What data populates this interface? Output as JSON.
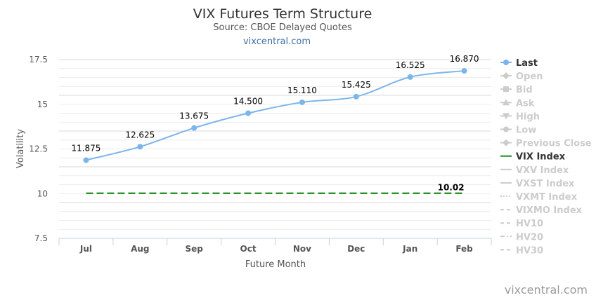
{
  "chart_data": {
    "type": "line",
    "title": "VIX Futures Term Structure",
    "subtitle": "Source: CBOE Delayed Quotes",
    "subtitle_link": "vixcentral.com",
    "xlabel": "Future Month",
    "ylabel": "Volatility",
    "categories": [
      "Jul",
      "Aug",
      "Sep",
      "Oct",
      "Nov",
      "Dec",
      "Jan",
      "Feb"
    ],
    "ylim": [
      7.5,
      17.5
    ],
    "yticks": [
      7.5,
      10,
      12.5,
      15,
      17.5
    ],
    "ytick_labels": [
      "7.5",
      "10",
      "12.5",
      "15",
      "17.5"
    ],
    "grid": true,
    "legend_position": "right",
    "series": [
      {
        "name": "Last",
        "color": "#7cb5ec",
        "values": [
          11.875,
          12.625,
          13.675,
          14.5,
          15.11,
          15.425,
          16.525,
          16.87
        ],
        "labels": [
          "11.875",
          "12.625",
          "13.675",
          "14.500",
          "15.110",
          "15.425",
          "16.525",
          "16.870"
        ]
      },
      {
        "name": "VIX Index",
        "color": "#1a8a1a",
        "dashed": true,
        "values": [
          10.02,
          10.02,
          10.02,
          10.02,
          10.02,
          10.02,
          10.02,
          10.02
        ],
        "end_label": "10.02"
      }
    ],
    "legend": [
      {
        "name": "Last",
        "active": true,
        "symbol": "circle-line",
        "color": "#7cb5ec"
      },
      {
        "name": "Open",
        "active": false,
        "symbol": "diamond-line"
      },
      {
        "name": "Bid",
        "active": false,
        "symbol": "square-line"
      },
      {
        "name": "Ask",
        "active": false,
        "symbol": "triangle-line"
      },
      {
        "name": "High",
        "active": false,
        "symbol": "triangle-down-line"
      },
      {
        "name": "Low",
        "active": false,
        "symbol": "circle-line"
      },
      {
        "name": "Previous Close",
        "active": false,
        "symbol": "diamond-line"
      },
      {
        "name": "VIX Index",
        "active": true,
        "symbol": "line",
        "color": "#1a8a1a"
      },
      {
        "name": "VXV Index",
        "active": false,
        "symbol": "line"
      },
      {
        "name": "VXST Index",
        "active": false,
        "symbol": "line"
      },
      {
        "name": "VXMT Index",
        "active": false,
        "symbol": "dotted"
      },
      {
        "name": "VIXMO Index",
        "active": false,
        "symbol": "dashed"
      },
      {
        "name": "HV10",
        "active": false,
        "symbol": "dashed"
      },
      {
        "name": "HV20",
        "active": false,
        "symbol": "dashdot"
      },
      {
        "name": "HV30",
        "active": false,
        "symbol": "dashed"
      }
    ],
    "credit": "vixcentral.com"
  }
}
